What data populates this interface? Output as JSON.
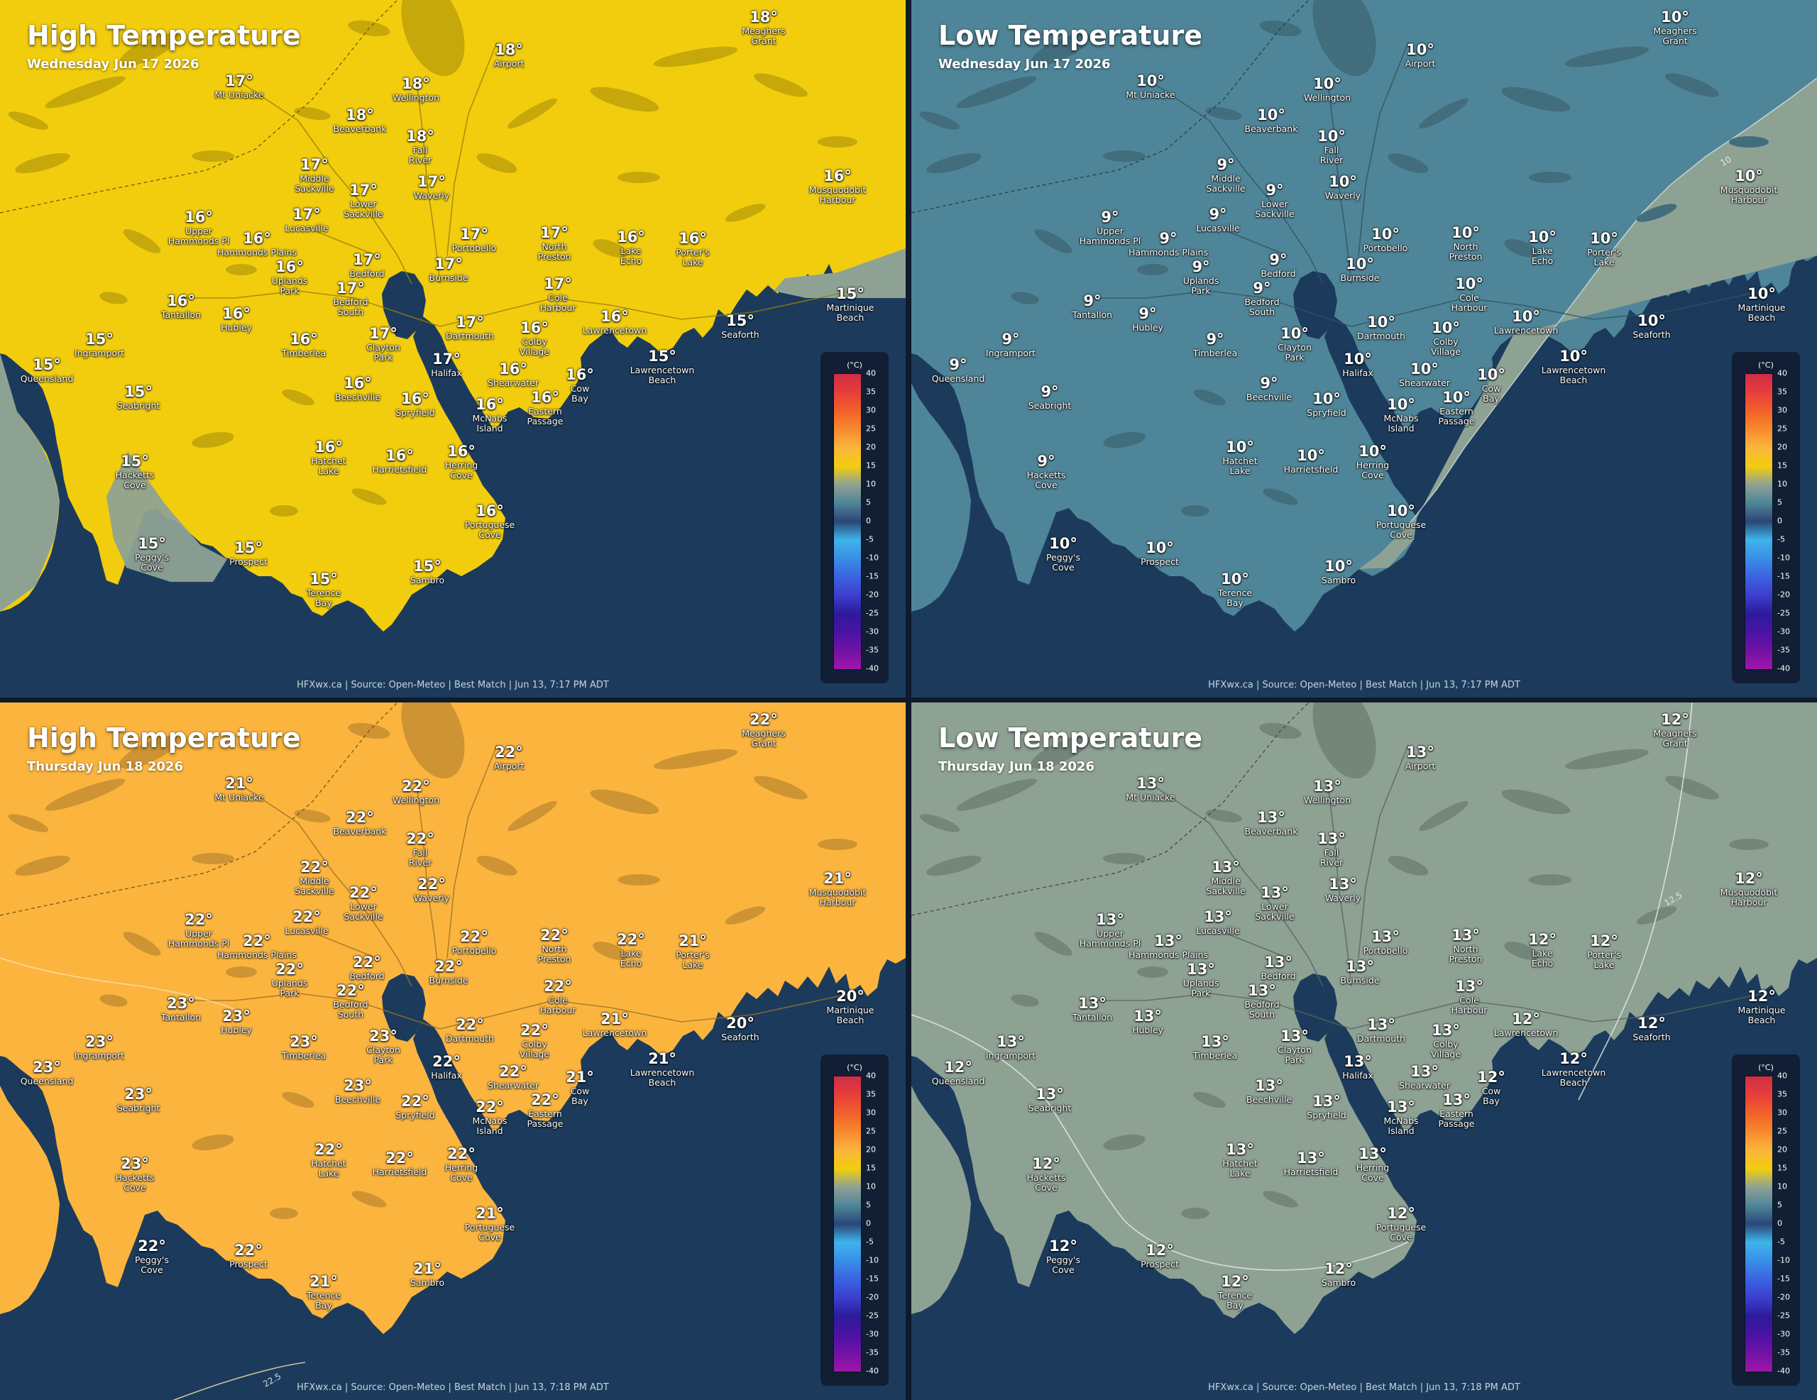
{
  "colors": {
    "water": "#1c3b5c",
    "land_high_wed": "#f2cd0e",
    "land_high_thu": "#fbb53e",
    "land_low_wed": "#4f8598",
    "land_low_thu": "#8ea294",
    "zone_cool": "#8ea294"
  },
  "legend": {
    "unit": "(°C)",
    "ticks": [
      "40",
      "35",
      "30",
      "25",
      "20",
      "15",
      "10",
      "5",
      "0",
      "-5",
      "-10",
      "-15",
      "-20",
      "-25",
      "-30",
      "-35",
      "-40"
    ],
    "swatches": [
      "#cf2d45",
      "#e63e3c",
      "#f2602b",
      "#f78a2c",
      "#fbb53e",
      "#f2cd0e",
      "#8ea294",
      "#4f8598",
      "#2b4677",
      "#3fb4e9",
      "#3a8ee6",
      "#3a63e0",
      "#3b3fce",
      "#2c1b9a",
      "#4a13a3",
      "#7112a6",
      "#a015a8"
    ]
  },
  "names": {
    "meaghers": "Meaghers\nGrant",
    "airport": "Airport",
    "mtuniacke": "Mt Uniacke",
    "wellington": "Wellington",
    "beaverbank": "Beaverbank",
    "fallriver": "Fall\nRiver",
    "middlesack": "Middle\nSackville",
    "lowersack": "Lower\nSackville",
    "waverly": "Waverly",
    "musquodobit": "Musquodobit\nHarbour",
    "upperhammonds": "Upper\nHammonds Pl",
    "lucasville": "Lucasville",
    "hammondsplains": "Hammonds Plains",
    "portobello": "Portobello",
    "northpreston": "North\nPreston",
    "lakeecho": "Lake\nEcho",
    "porterslake": "Porter's\nLake",
    "uplandspark": "Uplands\nPark",
    "bedford": "Bedford",
    "burnside": "Burnside",
    "coleharbour": "Cole\nHarbour",
    "bedfordsouth": "Bedford\nSouth",
    "tantallon": "Tantallon",
    "hubley": "Hubley",
    "martinique": "Martinique\nBeach",
    "dartmouth": "Dartmouth",
    "colbyvillage": "Colby\nVillage",
    "lawrencetown": "Lawrencetown",
    "seaforth": "Seaforth",
    "ingramport": "Ingramport",
    "timberlea": "Timberlea",
    "claytonpark": "Clayton\nPark",
    "halifax": "Halifax",
    "lawrencetownbeach": "Lawrencetown\nBeach",
    "queensland": "Queensland",
    "shearwater": "Shearwater",
    "cowbay": "Cow\nBay",
    "beechville": "Beechville",
    "seabright": "Seabright",
    "spryfield": "Spryfield",
    "mcnabs": "McNabs\nIsland",
    "easternpassage": "Eastern\nPassage",
    "hatchetlake": "Hatchet\nLake",
    "harrietsfield": "Harrietsfield",
    "herringcove": "Herring\nCove",
    "hacketts": "Hacketts\nCove",
    "portuguese": "Portuguese\nCove",
    "peggys": "Peggy's\nCove",
    "prospect": "Prospect",
    "terencebay": "Terence\nBay",
    "sambro": "Sambro"
  },
  "panels": [
    {
      "title": "High Temperature",
      "date": "Wednesday Jun 17 2026",
      "footer": "HFXwx.ca | Source: Open-Meteo | Best Match | Jun 13, 7:17 PM ADT",
      "temps": {
        "meaghers": "18°",
        "airport": "18°",
        "mtuniacke": "17°",
        "wellington": "18°",
        "beaverbank": "18°",
        "fallriver": "18°",
        "middlesack": "17°",
        "lowersack": "17°",
        "waverly": "17°",
        "musquodobit": "16°",
        "upperhammonds": "16°",
        "lucasville": "17°",
        "hammondsplains": "16°",
        "portobello": "17°",
        "northpreston": "17°",
        "lakeecho": "16°",
        "porterslake": "16°",
        "uplandspark": "16°",
        "bedford": "17°",
        "burnside": "17°",
        "coleharbour": "17°",
        "bedfordsouth": "17°",
        "tantallon": "16°",
        "hubley": "16°",
        "martinique": "15°",
        "dartmouth": "17°",
        "colbyvillage": "16°",
        "lawrencetown": "16°",
        "seaforth": "15°",
        "ingramport": "15°",
        "timberlea": "16°",
        "claytonpark": "17°",
        "halifax": "17°",
        "lawrencetownbeach": "15°",
        "queensland": "15°",
        "shearwater": "16°",
        "cowbay": "16°",
        "beechville": "16°",
        "seabright": "15°",
        "spryfield": "16°",
        "mcnabs": "16°",
        "easternpassage": "16°",
        "hatchetlake": "16°",
        "harrietsfield": "16°",
        "herringcove": "16°",
        "hacketts": "15°",
        "portuguese": "16°",
        "peggys": "15°",
        "prospect": "15°",
        "terencebay": "15°",
        "sambro": "15°"
      }
    },
    {
      "title": "Low Temperature",
      "date": "Wednesday Jun 17 2026",
      "footer": "HFXwx.ca | Source: Open-Meteo | Best Match | Jun 13, 7:17 PM ADT",
      "isoline_label": "10",
      "temps": {
        "meaghers": "10°",
        "airport": "10°",
        "mtuniacke": "10°",
        "wellington": "10°",
        "beaverbank": "10°",
        "fallriver": "10°",
        "middlesack": "9°",
        "lowersack": "9°",
        "waverly": "10°",
        "musquodobit": "10°",
        "upperhammonds": "9°",
        "lucasville": "9°",
        "hammondsplains": "9°",
        "portobello": "10°",
        "northpreston": "10°",
        "lakeecho": "10°",
        "porterslake": "10°",
        "uplandspark": "9°",
        "bedford": "9°",
        "burnside": "10°",
        "coleharbour": "10°",
        "bedfordsouth": "9°",
        "tantallon": "9°",
        "hubley": "9°",
        "martinique": "10°",
        "dartmouth": "10°",
        "colbyvillage": "10°",
        "lawrencetown": "10°",
        "seaforth": "10°",
        "ingramport": "9°",
        "timberlea": "9°",
        "claytonpark": "10°",
        "halifax": "10°",
        "lawrencetownbeach": "10°",
        "queensland": "9°",
        "shearwater": "10°",
        "cowbay": "10°",
        "beechville": "9°",
        "seabright": "9°",
        "spryfield": "10°",
        "mcnabs": "10°",
        "easternpassage": "10°",
        "hatchetlake": "10°",
        "harrietsfield": "10°",
        "herringcove": "10°",
        "hacketts": "9°",
        "portuguese": "10°",
        "peggys": "10°",
        "prospect": "10°",
        "terencebay": "10°",
        "sambro": "10°"
      }
    },
    {
      "title": "High Temperature",
      "date": "Thursday Jun 18 2026",
      "footer": "HFXwx.ca | Source: Open-Meteo | Best Match | Jun 13, 7:18 PM ADT",
      "isoline_label": "22.5",
      "temps": {
        "meaghers": "22°",
        "airport": "22°",
        "mtuniacke": "21°",
        "wellington": "22°",
        "beaverbank": "22°",
        "fallriver": "22°",
        "middlesack": "22°",
        "lowersack": "22°",
        "waverly": "22°",
        "musquodobit": "21°",
        "upperhammonds": "22°",
        "lucasville": "22°",
        "hammondsplains": "22°",
        "portobello": "22°",
        "northpreston": "22°",
        "lakeecho": "22°",
        "porterslake": "21°",
        "uplandspark": "22°",
        "bedford": "22°",
        "burnside": "22°",
        "coleharbour": "22°",
        "bedfordsouth": "22°",
        "tantallon": "23°",
        "hubley": "23°",
        "martinique": "20°",
        "dartmouth": "22°",
        "colbyvillage": "22°",
        "lawrencetown": "21°",
        "seaforth": "20°",
        "ingramport": "23°",
        "timberlea": "23°",
        "claytonpark": "23°",
        "halifax": "22°",
        "lawrencetownbeach": "21°",
        "queensland": "23°",
        "shearwater": "22°",
        "cowbay": "21°",
        "beechville": "23°",
        "seabright": "23°",
        "spryfield": "22°",
        "mcnabs": "22°",
        "easternpassage": "22°",
        "hatchetlake": "22°",
        "harrietsfield": "22°",
        "herringcove": "22°",
        "hacketts": "23°",
        "portuguese": "21°",
        "peggys": "22°",
        "prospect": "22°",
        "terencebay": "21°",
        "sambro": "21°"
      }
    },
    {
      "title": "Low Temperature",
      "date": "Thursday Jun 18 2026",
      "footer": "HFXwx.ca | Source: Open-Meteo | Best Match | Jun 13, 7:18 PM ADT",
      "isoline_label": "12.5",
      "temps": {
        "meaghers": "12°",
        "airport": "13°",
        "mtuniacke": "13°",
        "wellington": "13°",
        "beaverbank": "13°",
        "fallriver": "13°",
        "middlesack": "13°",
        "lowersack": "13°",
        "waverly": "13°",
        "musquodobit": "12°",
        "upperhammonds": "13°",
        "lucasville": "13°",
        "hammondsplains": "13°",
        "portobello": "13°",
        "northpreston": "13°",
        "lakeecho": "12°",
        "porterslake": "12°",
        "uplandspark": "13°",
        "bedford": "13°",
        "burnside": "13°",
        "coleharbour": "13°",
        "bedfordsouth": "13°",
        "tantallon": "13°",
        "hubley": "13°",
        "martinique": "12°",
        "dartmouth": "13°",
        "colbyvillage": "13°",
        "lawrencetown": "12°",
        "seaforth": "12°",
        "ingramport": "13°",
        "timberlea": "13°",
        "claytonpark": "13°",
        "halifax": "13°",
        "lawrencetownbeach": "12°",
        "queensland": "12°",
        "shearwater": "13°",
        "cowbay": "12°",
        "beechville": "13°",
        "seabright": "13°",
        "spryfield": "13°",
        "mcnabs": "13°",
        "easternpassage": "13°",
        "hatchetlake": "13°",
        "harrietsfield": "13°",
        "herringcove": "13°",
        "hacketts": "12°",
        "portuguese": "12°",
        "peggys": "12°",
        "prospect": "12°",
        "terencebay": "12°",
        "sambro": "12°"
      }
    }
  ]
}
